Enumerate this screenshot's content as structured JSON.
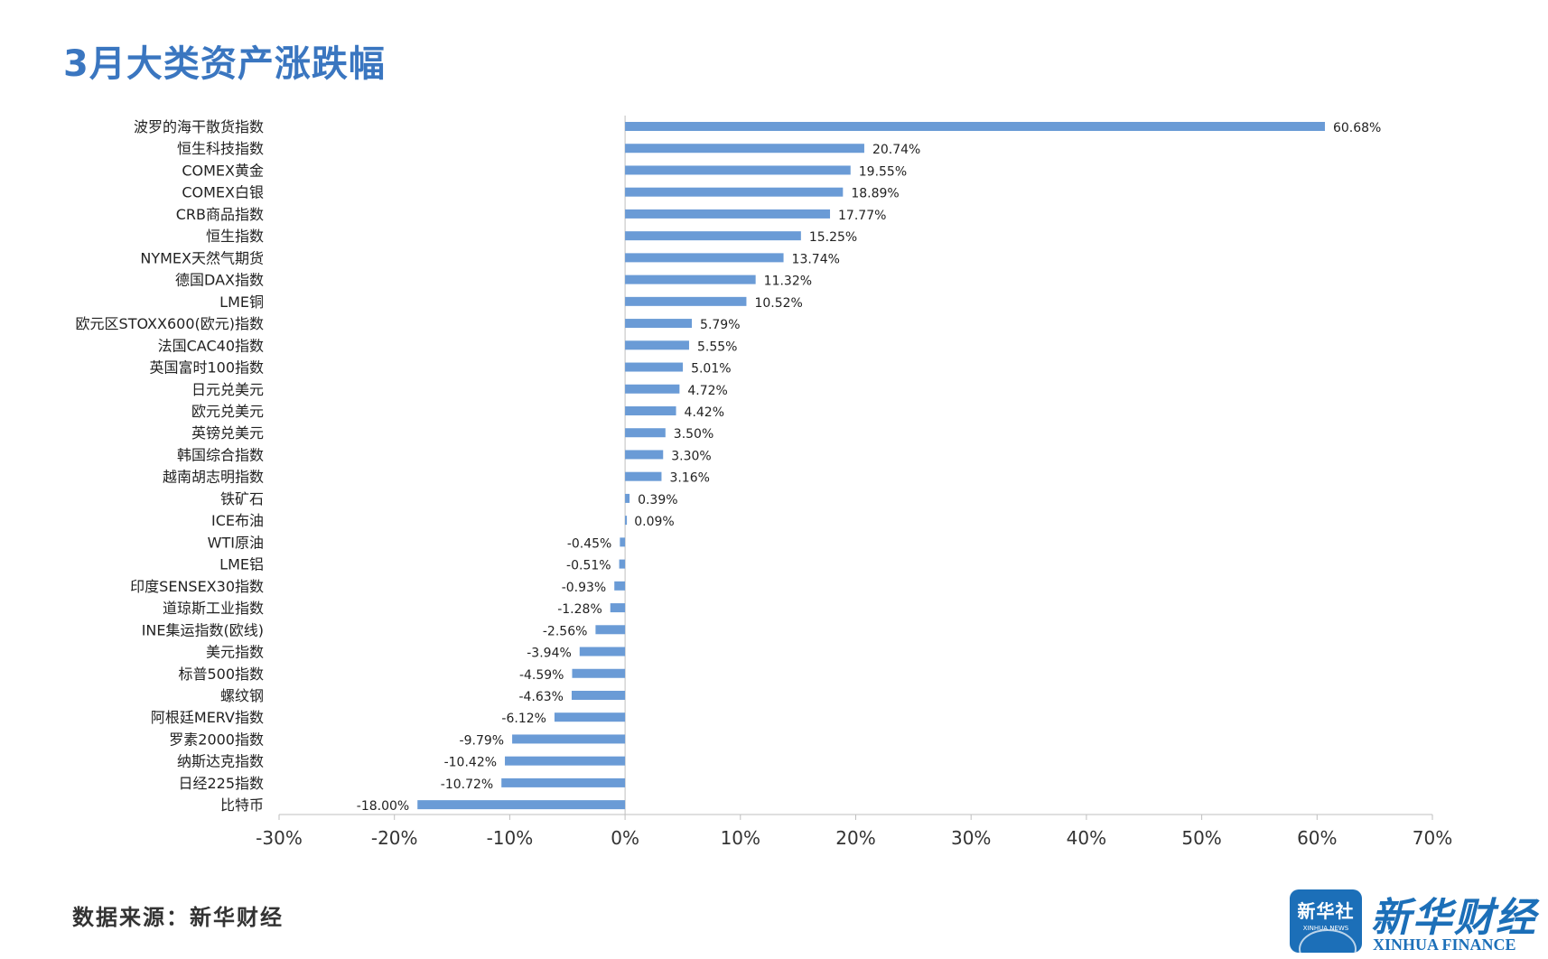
{
  "title": "3月大类资产涨跌幅",
  "source_text": "数据来源：新华财经",
  "logo": {
    "badge_cn": "新华社",
    "badge_en": "XINHUA NEWS",
    "name_cn": "新华财经",
    "name_en": "XINHUA FINANCE",
    "icon": "xinhua-globe-icon"
  },
  "colors": {
    "bar": "#6a9bd6",
    "title": "#3a76c0",
    "brand": "#1c6fb8"
  },
  "chart_data": {
    "type": "bar",
    "orientation": "horizontal",
    "categories": [
      "波罗的海干散货指数",
      "恒生科技指数",
      "COMEX黄金",
      "COMEX白银",
      "CRB商品指数",
      "恒生指数",
      "NYMEX天然气期货",
      "德国DAX指数",
      "LME铜",
      "欧元区STOXX600(欧元)指数",
      "法国CAC40指数",
      "英国富时100指数",
      "日元兑美元",
      "欧元兑美元",
      "英镑兑美元",
      "韩国综合指数",
      "越南胡志明指数",
      "铁矿石",
      "ICE布油",
      "WTI原油",
      "LME铝",
      "印度SENSEX30指数",
      "道琼斯工业指数",
      "INE集运指数(欧线)",
      "美元指数",
      "标普500指数",
      "螺纹钢",
      "阿根廷MERV指数",
      "罗素2000指数",
      "纳斯达克指数",
      "日经225指数",
      "比特币"
    ],
    "values": [
      60.68,
      20.74,
      19.55,
      18.89,
      17.77,
      15.25,
      13.74,
      11.32,
      10.52,
      5.79,
      5.55,
      5.01,
      4.72,
      4.42,
      3.5,
      3.3,
      3.16,
      0.39,
      0.09,
      -0.45,
      -0.51,
      -0.93,
      -1.28,
      -2.56,
      -3.94,
      -4.59,
      -4.63,
      -6.12,
      -9.79,
      -10.42,
      -10.72,
      -18.0
    ],
    "value_labels": [
      "60.68%",
      "20.74%",
      "19.55%",
      "18.89%",
      "17.77%",
      "15.25%",
      "13.74%",
      "11.32%",
      "10.52%",
      "5.79%",
      "5.55%",
      "5.01%",
      "4.72%",
      "4.42%",
      "3.50%",
      "3.30%",
      "3.16%",
      "0.39%",
      "0.09%",
      "-0.45%",
      "-0.51%",
      "-0.93%",
      "-1.28%",
      "-2.56%",
      "-3.94%",
      "-4.59%",
      "-4.63%",
      "-6.12%",
      "-9.79%",
      "-10.42%",
      "-10.72%",
      "-18.00%"
    ],
    "xlim": [
      -30,
      70
    ],
    "xticks": [
      -30,
      -20,
      -10,
      0,
      10,
      20,
      30,
      40,
      50,
      60,
      70
    ],
    "xtick_labels": [
      "-30%",
      "-20%",
      "-10%",
      "0%",
      "10%",
      "20%",
      "30%",
      "40%",
      "50%",
      "60%",
      "70%"
    ],
    "xlabel": "",
    "ylabel": "",
    "grid": false,
    "legend": "none"
  }
}
